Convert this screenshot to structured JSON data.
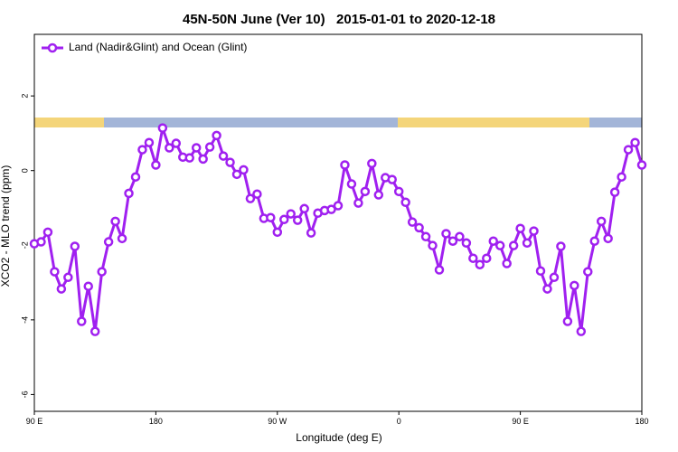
{
  "chart_data": {
    "type": "line",
    "title": "45N-50N June (Ver 10)   2015-01-01 to 2020-12-18",
    "x_label": "Longitude (deg E)",
    "y_label": "XCO2 - MLO trend (ppm)",
    "x": [
      90,
      95,
      100,
      105,
      110,
      115,
      120,
      125,
      130,
      135,
      140,
      145,
      150,
      155,
      160,
      165,
      170,
      175,
      180,
      185,
      190,
      195,
      200,
      205,
      210,
      215,
      220,
      225,
      230,
      235,
      240,
      245,
      250,
      255,
      260,
      265,
      270,
      275,
      280,
      285,
      290,
      295,
      300,
      305,
      310,
      315,
      320,
      325,
      330,
      335,
      340,
      345,
      350,
      355,
      360,
      365,
      370,
      375,
      380,
      385,
      390,
      395,
      400,
      405,
      410,
      415,
      420,
      425,
      430,
      435,
      440,
      445,
      450,
      455,
      460,
      465,
      470,
      475,
      480,
      485,
      490,
      495,
      500,
      505,
      510,
      515,
      520,
      525,
      530,
      535,
      540
    ],
    "series": [
      {
        "name": "Land (Nadir&Glint) and Ocean (Glint)",
        "color": "#a020f0",
        "values": [
          -1.96,
          -1.91,
          -1.65,
          -2.71,
          -3.17,
          -2.86,
          -2.03,
          -4.04,
          -3.1,
          -4.31,
          -2.71,
          -1.91,
          -1.36,
          -1.82,
          -0.61,
          -0.17,
          0.56,
          0.75,
          0.15,
          1.14,
          0.61,
          0.73,
          0.36,
          0.34,
          0.61,
          0.31,
          0.63,
          0.94,
          0.39,
          0.22,
          -0.1,
          0.02,
          -0.75,
          -0.63,
          -1.28,
          -1.26,
          -1.65,
          -1.31,
          -1.16,
          -1.33,
          -1.02,
          -1.67,
          -1.14,
          -1.07,
          -1.04,
          -0.94,
          0.15,
          -0.36,
          -0.87,
          -0.56,
          0.19,
          -0.65,
          -0.19,
          -0.24,
          -0.56,
          -0.85,
          -1.38,
          -1.53,
          -1.77,
          -2.01,
          -2.66,
          -1.69,
          -1.89,
          -1.77,
          -1.94,
          -2.35,
          -2.52,
          -2.35,
          -1.89,
          -2.01,
          -2.49,
          -2.01,
          -1.55,
          -1.94,
          -1.62,
          -2.69,
          -3.17,
          -2.86,
          -2.03,
          -4.04,
          -3.08,
          -4.31,
          -2.71,
          -1.89,
          -1.36,
          -1.82,
          -0.58,
          -0.17,
          0.56,
          0.75,
          0.15
        ]
      }
    ],
    "xlim": [
      90,
      540
    ],
    "xticks": [
      {
        "value": 90,
        "label": "90 E"
      },
      {
        "value": 180,
        "label": "180"
      },
      {
        "value": 270,
        "label": "90 W"
      },
      {
        "value": 360,
        "label": "0"
      },
      {
        "value": 450,
        "label": "90 E"
      },
      {
        "value": 540,
        "label": "180"
      }
    ],
    "ylim": [
      -6.45,
      3.65
    ],
    "yticks": [
      -6,
      -4,
      -2,
      0,
      2
    ],
    "legend": "top-left"
  }
}
